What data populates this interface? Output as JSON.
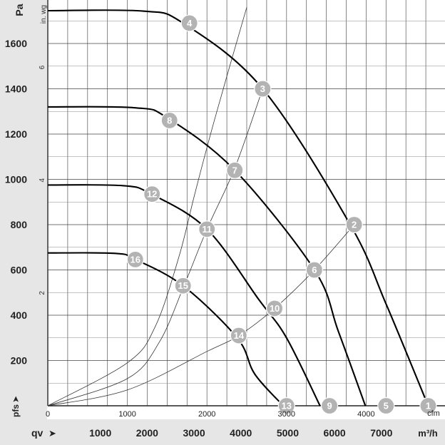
{
  "chart_data": {
    "type": "line",
    "title": "",
    "y_primary": {
      "unit_label": "Pa",
      "ticks": [
        200,
        400,
        600,
        800,
        1000,
        1200,
        1400,
        1600
      ],
      "range": [
        0,
        1750
      ]
    },
    "y_secondary": {
      "unit_label": "in. wg",
      "ticks": [
        2,
        4,
        6
      ]
    },
    "x_bottom": {
      "unit_label": "m³/h",
      "ticks": [
        1000,
        2000,
        3000,
        4000,
        5000,
        6000,
        7000
      ]
    },
    "x_top": {
      "unit_label": "cfm",
      "ticks": [
        0,
        1000,
        2000,
        3000,
        4000
      ]
    },
    "x_range_cfm": [
      0,
      4850
    ],
    "ylabel": "pfs",
    "xlabel": "qv",
    "fan_curves": [
      {
        "name": "",
        "points": [
          [
            0,
            1745
          ],
          [
            1200,
            1743
          ],
          [
            1700,
            1690
          ],
          [
            2700,
            1400
          ],
          [
            3800,
            800
          ],
          [
            4250,
            450
          ],
          [
            4780,
            0
          ]
        ]
      },
      {
        "name": "",
        "points": [
          [
            0,
            1320
          ],
          [
            1100,
            1316
          ],
          [
            1500,
            1272
          ],
          [
            2350,
            1040
          ],
          [
            3350,
            600
          ],
          [
            3650,
            330
          ],
          [
            3990,
            0
          ]
        ]
      },
      {
        "name": "",
        "points": [
          [
            0,
            975
          ],
          [
            950,
            972
          ],
          [
            1300,
            935
          ],
          [
            2000,
            780
          ],
          [
            2650,
            470
          ],
          [
            3000,
            300
          ],
          [
            3420,
            0
          ]
        ]
      },
      {
        "name": "",
        "points": [
          [
            0,
            675
          ],
          [
            850,
            673
          ],
          [
            1100,
            646
          ],
          [
            1700,
            530
          ],
          [
            2380,
            300
          ],
          [
            2600,
            140
          ],
          [
            2960,
            0
          ]
        ]
      }
    ],
    "system_curves": [
      {
        "points": [
          [
            0,
            0
          ],
          [
            1000,
            190
          ],
          [
            1350,
            350
          ],
          [
            1650,
            660
          ],
          [
            1850,
            940
          ],
          [
            2100,
            1270
          ],
          [
            2500,
            1760
          ]
        ]
      },
      {
        "points": [
          [
            0,
            0
          ],
          [
            1000,
            120
          ],
          [
            1400,
            280
          ],
          [
            1700,
            520
          ],
          [
            2000,
            780
          ],
          [
            2350,
            1050
          ],
          [
            2700,
            1400
          ]
        ]
      },
      {
        "points": [
          [
            0,
            0
          ],
          [
            1000,
            70
          ],
          [
            2000,
            240
          ],
          [
            2400,
            310
          ],
          [
            2850,
            430
          ],
          [
            3350,
            600
          ],
          [
            3850,
            800
          ]
        ]
      }
    ],
    "operating_points": [
      {
        "label": "1",
        "x": 4780,
        "y": 0
      },
      {
        "label": "2",
        "x": 3850,
        "y": 800
      },
      {
        "label": "3",
        "x": 2700,
        "y": 1400
      },
      {
        "label": "4",
        "x": 1780,
        "y": 1690
      },
      {
        "label": "5",
        "x": 4250,
        "y": 0
      },
      {
        "label": "6",
        "x": 3350,
        "y": 600
      },
      {
        "label": "7",
        "x": 2350,
        "y": 1040
      },
      {
        "label": "8",
        "x": 1530,
        "y": 1260
      },
      {
        "label": "9",
        "x": 3540,
        "y": 0
      },
      {
        "label": "10",
        "x": 2850,
        "y": 430
      },
      {
        "label": "11",
        "x": 2000,
        "y": 780
      },
      {
        "label": "12",
        "x": 1310,
        "y": 935
      },
      {
        "label": "13",
        "x": 3000,
        "y": 0
      },
      {
        "label": "14",
        "x": 2400,
        "y": 310
      },
      {
        "label": "15",
        "x": 1700,
        "y": 530
      },
      {
        "label": "16",
        "x": 1100,
        "y": 646
      }
    ],
    "grid": true
  }
}
